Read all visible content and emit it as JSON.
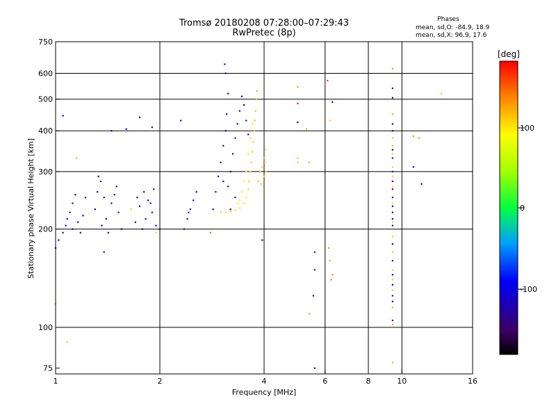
{
  "header": {
    "title": "Tromsø 20180208 07:28:00–07:29:43",
    "subtitle": "RwPretec (8p)"
  },
  "stats": {
    "title": "Phases",
    "o_line": "mean, sd,O: -84.9, 18.9",
    "x_line": "mean, sd,X:  96.9, 17.6"
  },
  "colorbar": {
    "unit_label": "[deg]",
    "ticks": [
      "100",
      "0",
      "-100"
    ]
  },
  "chart_data": {
    "type": "scatter",
    "xlabel": "Frequency [MHz]",
    "ylabel": "Stationary phase Virtual Height [km]",
    "xscale": "log",
    "yscale": "log",
    "xlim": [
      1,
      16
    ],
    "ylim": [
      72,
      750
    ],
    "xticks": [
      "1",
      "2",
      "4",
      "6",
      "8",
      "10",
      "16"
    ],
    "yticks": [
      "75",
      "100",
      "200",
      "300",
      "400",
      "500",
      "600",
      "750"
    ],
    "grid_x": [
      2,
      4,
      6,
      8,
      10
    ],
    "grid_y": [
      100,
      200,
      300,
      400,
      500,
      600
    ],
    "color_scale": {
      "label": "[deg]",
      "range": [
        -180,
        180
      ],
      "ticks": [
        100,
        0,
        -100
      ]
    },
    "series": [
      {
        "cluster": "o-trace",
        "points": [
          [
            1.0,
            175,
            -95
          ],
          [
            1.02,
            185,
            -100
          ],
          [
            1.05,
            195,
            -98
          ],
          [
            1.07,
            205,
            -96
          ],
          [
            1.08,
            215,
            -92
          ],
          [
            1.1,
            225,
            -90
          ],
          [
            1.12,
            240,
            -95
          ],
          [
            1.14,
            255,
            -100
          ],
          [
            1.12,
            200,
            -97
          ],
          [
            1.16,
            210,
            -93
          ],
          [
            1.2,
            220,
            -95
          ],
          [
            1.22,
            250,
            -98
          ],
          [
            1.18,
            195,
            -99
          ],
          [
            1.3,
            230,
            -105
          ],
          [
            1.32,
            260,
            -100
          ],
          [
            1.35,
            280,
            -102
          ],
          [
            1.38,
            250,
            -98
          ],
          [
            1.4,
            215,
            -96
          ],
          [
            1.42,
            195,
            -99
          ],
          [
            1.36,
            205,
            -101
          ],
          [
            1.33,
            290,
            -103
          ],
          [
            1.45,
            240,
            -100
          ],
          [
            1.5,
            270,
            -95
          ],
          [
            1.52,
            225,
            -98
          ],
          [
            1.55,
            200,
            -96
          ],
          [
            1.48,
            255,
            -100
          ],
          [
            1.7,
            210,
            -100
          ],
          [
            1.75,
            235,
            -98
          ],
          [
            1.8,
            260,
            -102
          ],
          [
            1.85,
            245,
            -100
          ],
          [
            1.9,
            225,
            -97
          ],
          [
            1.95,
            205,
            -99
          ],
          [
            1.72,
            250,
            -101
          ],
          [
            1.82,
            215,
            -103
          ],
          [
            1.88,
            240,
            -96
          ],
          [
            1.78,
            200,
            -100
          ],
          [
            1.92,
            265,
            -98
          ],
          [
            2.35,
            200,
            -95
          ],
          [
            2.4,
            215,
            -98
          ],
          [
            2.45,
            230,
            -100
          ],
          [
            2.5,
            245,
            -97
          ],
          [
            2.55,
            260,
            -99
          ],
          [
            2.42,
            225,
            -101
          ],
          [
            2.85,
            230,
            -110
          ],
          [
            2.9,
            260,
            -115
          ],
          [
            2.95,
            290,
            -120
          ],
          [
            3.0,
            320,
            -125
          ],
          [
            3.05,
            360,
            -130
          ],
          [
            3.1,
            400,
            -135
          ],
          [
            3.12,
            450,
            -128
          ],
          [
            3.15,
            520,
            -125
          ],
          [
            3.1,
            600,
            -130
          ],
          [
            3.08,
            640,
            -132
          ],
          [
            3.2,
            300,
            -118
          ],
          [
            3.25,
            340,
            -122
          ],
          [
            3.3,
            380,
            -126
          ],
          [
            3.35,
            420,
            -124
          ],
          [
            3.4,
            460,
            -120
          ],
          [
            3.45,
            510,
            -118
          ],
          [
            3.5,
            480,
            -116
          ],
          [
            3.55,
            430,
            -118
          ],
          [
            3.6,
            390,
            -120
          ],
          [
            3.3,
            250,
            -112
          ],
          [
            3.2,
            230,
            -108
          ],
          [
            3.05,
            280,
            -115
          ],
          [
            3.15,
            270,
            -120
          ],
          [
            1.05,
            445,
            -95
          ],
          [
            1.45,
            400,
            -100
          ],
          [
            1.6,
            405,
            -98
          ],
          [
            1.75,
            440,
            -96
          ],
          [
            1.9,
            410,
            -100
          ],
          [
            2.3,
            430,
            -98
          ],
          [
            2.0,
            200,
            -100
          ],
          [
            1.38,
            170,
            -110
          ],
          [
            3.95,
            185,
            -120
          ],
          [
            5.6,
            170,
            -110
          ],
          [
            5.6,
            150,
            -108
          ],
          [
            5.55,
            125,
            -112
          ],
          [
            6.3,
            490,
            -100
          ],
          [
            5.0,
            425,
            -105
          ],
          [
            5.6,
            75,
            -110
          ],
          [
            10.8,
            310,
            -100
          ],
          [
            11.4,
            275,
            -98
          ],
          [
            9.4,
            540,
            -120
          ],
          [
            9.4,
            505,
            -110
          ],
          [
            9.4,
            420,
            -130
          ],
          [
            9.4,
            400,
            -125
          ],
          [
            9.4,
            350,
            -120
          ],
          [
            9.4,
            330,
            -118
          ],
          [
            9.4,
            300,
            -115
          ],
          [
            9.4,
            280,
            -110
          ],
          [
            9.4,
            265,
            -112
          ],
          [
            9.4,
            250,
            -118
          ],
          [
            9.4,
            235,
            -120
          ],
          [
            9.4,
            225,
            -125
          ],
          [
            9.4,
            215,
            -115
          ],
          [
            9.4,
            205,
            -110
          ],
          [
            9.4,
            180,
            -100
          ],
          [
            9.4,
            160,
            -105
          ],
          [
            9.4,
            145,
            -110
          ],
          [
            9.4,
            135,
            -100
          ],
          [
            9.4,
            125,
            -108
          ],
          [
            9.4,
            120,
            -112
          ],
          [
            9.4,
            105,
            -100
          ]
        ]
      },
      {
        "cluster": "x-trace",
        "points": [
          [
            3.0,
            225,
            110
          ],
          [
            3.1,
            225,
            105
          ],
          [
            3.2,
            227,
            112
          ],
          [
            3.3,
            229,
            108
          ],
          [
            3.4,
            232,
            102
          ],
          [
            3.5,
            240,
            100
          ],
          [
            3.55,
            250,
            98
          ],
          [
            3.6,
            265,
            103
          ],
          [
            3.62,
            280,
            106
          ],
          [
            3.65,
            300,
            104
          ],
          [
            3.68,
            320,
            108
          ],
          [
            3.7,
            345,
            110
          ],
          [
            3.72,
            370,
            112
          ],
          [
            3.74,
            400,
            114
          ],
          [
            3.76,
            430,
            116
          ],
          [
            3.78,
            460,
            118
          ],
          [
            3.8,
            500,
            120
          ],
          [
            3.82,
            530,
            122
          ],
          [
            3.55,
            300,
            100
          ],
          [
            3.6,
            340,
            98
          ],
          [
            3.5,
            280,
            96
          ],
          [
            3.45,
            260,
            95
          ],
          [
            3.4,
            245,
            97
          ],
          [
            3.35,
            240,
            99
          ],
          [
            3.65,
            380,
            102
          ],
          [
            3.7,
            420,
            104
          ],
          [
            3.85,
            280,
            110
          ],
          [
            3.9,
            300,
            108
          ],
          [
            3.95,
            310,
            106
          ],
          [
            4.0,
            290,
            104
          ],
          [
            4.0,
            330,
            102
          ],
          [
            4.05,
            350,
            100
          ],
          [
            3.92,
            275,
            112
          ],
          [
            4.02,
            320,
            108
          ],
          [
            3.98,
            260,
            106
          ],
          [
            4.05,
            300,
            104
          ],
          [
            5.0,
            330,
            115
          ],
          [
            5.0,
            320,
            112
          ],
          [
            5.4,
            320,
            120
          ],
          [
            5.3,
            405,
            118
          ],
          [
            5.0,
            545,
            130
          ],
          [
            5.4,
            110,
            125
          ],
          [
            6.2,
            430,
            110
          ],
          [
            6.15,
            175,
            130
          ],
          [
            6.3,
            145,
            135
          ],
          [
            6.2,
            160,
            125
          ],
          [
            6.25,
            140,
            140
          ],
          [
            1.08,
            90,
            110
          ],
          [
            1.0,
            118,
            120
          ],
          [
            9.4,
            620,
            125
          ],
          [
            9.4,
            450,
            120
          ],
          [
            9.4,
            380,
            115
          ],
          [
            9.4,
            360,
            112
          ],
          [
            9.4,
            340,
            110
          ],
          [
            9.4,
            310,
            108
          ],
          [
            9.4,
            290,
            105
          ],
          [
            9.4,
            270,
            100
          ],
          [
            9.4,
            240,
            102
          ],
          [
            9.4,
            210,
            104
          ],
          [
            9.4,
            190,
            106
          ],
          [
            9.4,
            170,
            108
          ],
          [
            9.4,
            150,
            110
          ],
          [
            9.4,
            140,
            112
          ],
          [
            9.4,
            130,
            114
          ],
          [
            9.4,
            115,
            116
          ],
          [
            9.4,
            102,
            118
          ],
          [
            9.4,
            78,
            120
          ],
          [
            10.8,
            385,
            130
          ],
          [
            11.2,
            380,
            125
          ],
          [
            13.0,
            520,
            110
          ],
          [
            6.1,
            570,
            160
          ],
          [
            2.8,
            195,
            150
          ],
          [
            1.95,
            195,
            105
          ],
          [
            1.65,
            230,
            110
          ],
          [
            1.15,
            330,
            20
          ],
          [
            5.0,
            485,
            170
          ]
        ]
      }
    ]
  }
}
